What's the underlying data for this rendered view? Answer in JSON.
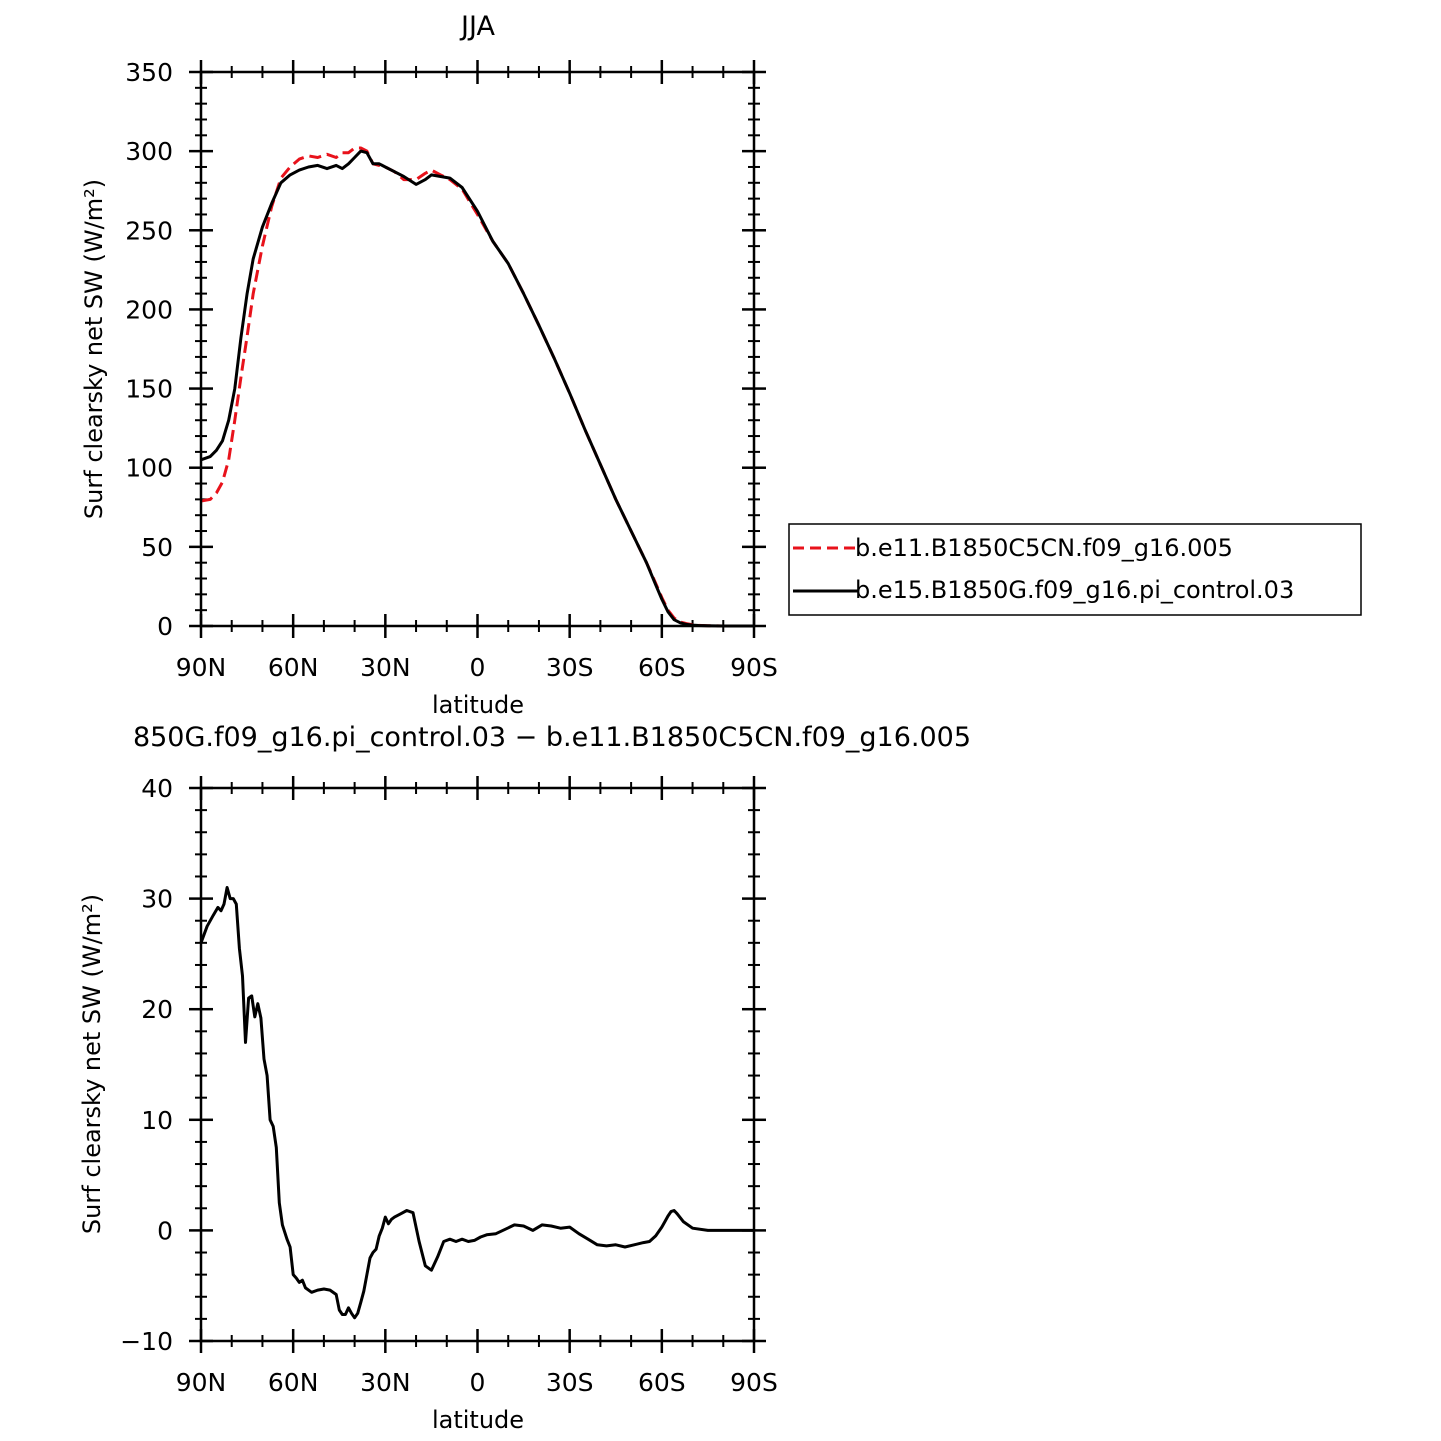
{
  "colors": {
    "red_series": "#e8121b",
    "black_series": "#000000"
  },
  "chart_data": [
    {
      "type": "line",
      "title": "JJA",
      "xlabel": "latitude",
      "ylabel": "Surf clearsky net SW (W/m²)",
      "xlim": [
        90,
        -90
      ],
      "ylim": [
        0,
        350
      ],
      "xticks": [
        90,
        60,
        30,
        0,
        -30,
        -60,
        -90
      ],
      "xtick_labels": [
        "90N",
        "60N",
        "30N",
        "0",
        "30S",
        "60S",
        "90S"
      ],
      "yticks": [
        0,
        50,
        100,
        150,
        200,
        250,
        300,
        350
      ],
      "ytick_labels": [
        "0",
        "50",
        "100",
        "150",
        "200",
        "250",
        "300",
        "350"
      ],
      "legend_position": "right",
      "series": [
        {
          "name": "b.e11.B1850C5CN.f09_g16.005",
          "style": "dashed",
          "color": "#e8121b",
          "x": [
            90,
            87,
            85,
            83,
            81,
            79,
            77,
            75,
            73,
            70,
            67,
            64,
            61,
            58,
            55,
            52,
            49,
            46,
            44,
            42,
            40,
            38,
            36,
            34,
            32,
            30,
            27,
            24,
            20,
            17,
            15,
            12,
            9,
            5,
            0,
            -5,
            -10,
            -15,
            -20,
            -25,
            -30,
            -35,
            -40,
            -45,
            -50,
            -55,
            -58,
            -60,
            -62,
            -64,
            -66,
            -68,
            -70,
            -72,
            -75,
            -80,
            -85,
            -90
          ],
          "y": [
            79,
            80,
            84,
            91,
            105,
            130,
            157,
            183,
            210,
            240,
            265,
            283,
            290,
            295,
            297,
            296,
            298,
            296,
            299,
            299,
            302,
            302,
            300,
            292,
            291,
            290,
            287,
            282,
            282,
            286,
            288,
            285,
            282,
            276,
            260,
            243,
            229,
            210,
            190,
            169,
            147,
            124,
            102,
            80,
            60,
            40,
            27,
            18,
            10,
            5,
            2.5,
            1.5,
            0.8,
            0.4,
            0.2,
            0,
            0,
            0
          ]
        },
        {
          "name": "b.e15.B1850G.f09_g16.pi_control.03",
          "style": "solid",
          "color": "#000000",
          "x": [
            90,
            87,
            85,
            83,
            81,
            79,
            77,
            75,
            73,
            70,
            67,
            64,
            61,
            58,
            55,
            52,
            49,
            46,
            44,
            42,
            40,
            38,
            36,
            34,
            32,
            30,
            27,
            24,
            20,
            17,
            15,
            12,
            9,
            5,
            0,
            -5,
            -10,
            -15,
            -20,
            -25,
            -30,
            -35,
            -40,
            -45,
            -50,
            -55,
            -58,
            -60,
            -62,
            -64,
            -66,
            -68,
            -70,
            -72,
            -75,
            -80,
            -85,
            -90
          ],
          "y": [
            105,
            107,
            111,
            117,
            130,
            150,
            182,
            210,
            232,
            252,
            267,
            280,
            285,
            288,
            290,
            291,
            289,
            291,
            289,
            292,
            296,
            300,
            299,
            292,
            292,
            290,
            287,
            284,
            279,
            282,
            285,
            284,
            283,
            277,
            262,
            243,
            229,
            210,
            190,
            169,
            147,
            124,
            102,
            80,
            60,
            40,
            26,
            17,
            9,
            4,
            2,
            1,
            0.6,
            0.3,
            0.1,
            0,
            0,
            0
          ]
        }
      ]
    },
    {
      "type": "line",
      "title": "850G.f09_g16.pi_control.03 − b.e11.B1850C5CN.f09_g16.005",
      "xlabel": "latitude",
      "ylabel": "Surf clearsky net SW (W/m²)",
      "xlim": [
        90,
        -90
      ],
      "ylim": [
        -10,
        40
      ],
      "xticks": [
        90,
        60,
        30,
        0,
        -30,
        -60,
        -90
      ],
      "xtick_labels": [
        "90N",
        "60N",
        "30N",
        "0",
        "30S",
        "60S",
        "90S"
      ],
      "yticks": [
        -10,
        0,
        10,
        20,
        30,
        40
      ],
      "ytick_labels": [
        "−10",
        "0",
        "10",
        "20",
        "30",
        "40"
      ],
      "series": [
        {
          "style": "solid",
          "color": "#000000",
          "x": [
            90,
            88,
            86,
            84.5,
            83.5,
            82.5,
            81.5,
            80.5,
            79.5,
            78.5,
            77.5,
            76.5,
            75.5,
            74.5,
            73.5,
            72.5,
            71.5,
            70.5,
            69.5,
            68.5,
            67.5,
            66.5,
            65.5,
            64.5,
            63.5,
            62,
            61,
            60,
            59,
            58,
            57,
            56,
            54,
            52,
            50,
            48,
            46,
            45,
            44,
            43,
            42,
            41,
            40,
            39,
            38,
            37,
            36,
            35,
            34,
            33,
            32,
            31,
            30,
            29,
            28,
            27,
            25,
            23,
            21,
            19,
            17,
            15,
            13,
            11,
            9,
            7,
            5,
            3,
            1,
            -1,
            -3,
            -6,
            -9,
            -12,
            -15,
            -18,
            -21,
            -24,
            -27,
            -30,
            -33,
            -36,
            -39,
            -42,
            -45,
            -48,
            -51,
            -54,
            -56,
            -58,
            -60,
            -61,
            -62,
            -63,
            -64,
            -65,
            -67,
            -70,
            -75,
            -80,
            -90
          ],
          "y": [
            26,
            27.5,
            28.5,
            29.2,
            28.9,
            29.5,
            31,
            30,
            30,
            29.5,
            25.5,
            23,
            17,
            21,
            21.2,
            19.3,
            20.5,
            19.2,
            15.5,
            14,
            10,
            9.4,
            7.5,
            2.5,
            0.5,
            -0.8,
            -1.5,
            -4,
            -4.3,
            -4.7,
            -4.5,
            -5.2,
            -5.6,
            -5.4,
            -5.3,
            -5.4,
            -5.8,
            -7.2,
            -7.6,
            -7.6,
            -7.0,
            -7.5,
            -7.9,
            -7.5,
            -6.5,
            -5.5,
            -4.0,
            -2.5,
            -2.0,
            -1.7,
            -0.5,
            0.2,
            1.2,
            0.6,
            1.0,
            1.2,
            1.5,
            1.8,
            1.6,
            -1.0,
            -3.2,
            -3.6,
            -2.4,
            -1.0,
            -0.8,
            -1.0,
            -0.8,
            -1.0,
            -0.9,
            -0.6,
            -0.4,
            -0.3,
            0.1,
            0.5,
            0.4,
            0.0,
            0.5,
            0.4,
            0.2,
            0.3,
            -0.3,
            -0.8,
            -1.3,
            -1.4,
            -1.3,
            -1.5,
            -1.3,
            -1.1,
            -1.0,
            -0.5,
            0.3,
            0.8,
            1.3,
            1.7,
            1.8,
            1.5,
            0.8,
            0.2,
            0.0,
            0.0,
            0.0
          ]
        }
      ]
    }
  ]
}
